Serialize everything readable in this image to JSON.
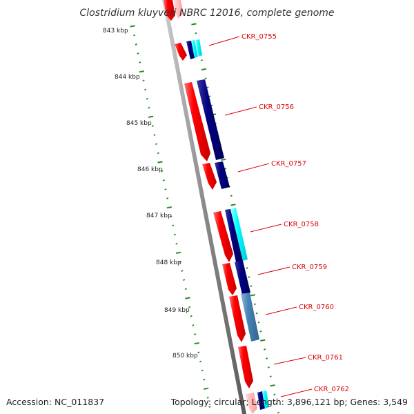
{
  "title": "Clostridium kluyveri NBRC 12016, complete genome",
  "footer": {
    "accession": "Accession: NC_011837",
    "summary": "Topology: circular; Length: 3,896,121 bp; Genes: 3,549"
  },
  "ruler": {
    "ticks": [
      "843 kbp",
      "844 kbp",
      "845 kbp",
      "846 kbp",
      "847 kbp",
      "848 kbp",
      "849 kbp",
      "850 kbp"
    ]
  },
  "genes": [
    {
      "label": "CKR_0755"
    },
    {
      "label": "CKR_0756"
    },
    {
      "label": "CKR_0757"
    },
    {
      "label": "CKR_0758"
    },
    {
      "label": "CKR_0759"
    },
    {
      "label": "CKR_0760"
    },
    {
      "label": "CKR_0761"
    },
    {
      "label": "CKR_0762"
    }
  ],
  "colors": {
    "cds": "#ff0000",
    "gene": "#000080",
    "rna_feature": "#00ffff",
    "other_feature": "#4682b4",
    "label": "#dd0000",
    "ruler": "#228b22",
    "backbone": "#888888"
  }
}
